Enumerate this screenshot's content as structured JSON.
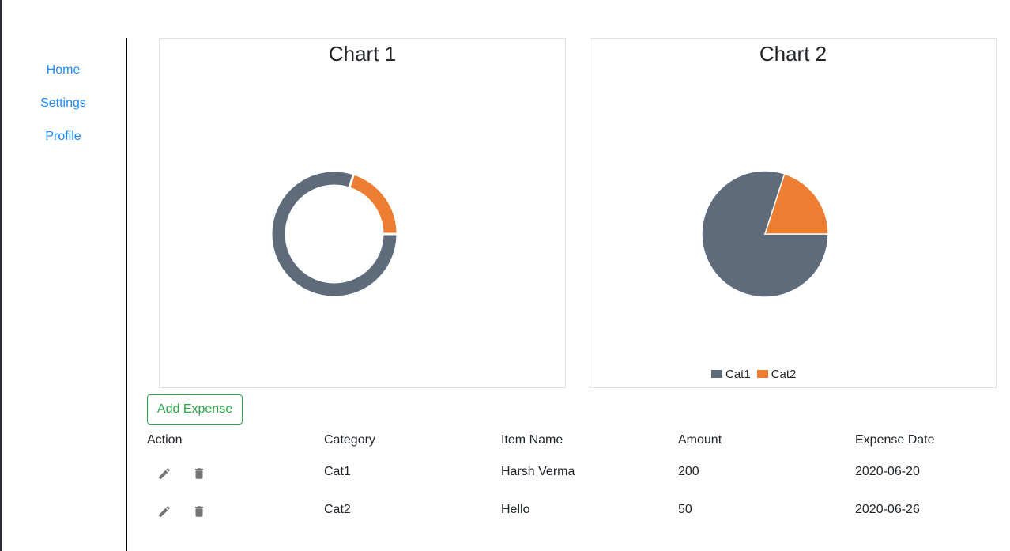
{
  "nav": {
    "items": [
      {
        "label": "Home"
      },
      {
        "label": "Settings"
      },
      {
        "label": "Profile"
      }
    ]
  },
  "charts": [
    {
      "title": "Chart 1",
      "type": "doughnut"
    },
    {
      "title": "Chart 2",
      "type": "pie"
    }
  ],
  "chart_data": [
    {
      "type": "pie",
      "variant": "doughnut",
      "title": "Chart 1",
      "categories": [
        "Cat1",
        "Cat2"
      ],
      "values": [
        200,
        50
      ],
      "colors": [
        "#5d6b7b",
        "#ed7d31"
      ],
      "legend": "none"
    },
    {
      "type": "pie",
      "title": "Chart 2",
      "categories": [
        "Cat1",
        "Cat2"
      ],
      "values": [
        200,
        50
      ],
      "colors": [
        "#5d6b7b",
        "#ed7d31"
      ],
      "legend": "bottom"
    }
  ],
  "legend": [
    {
      "label": "Cat1",
      "color": "#5d6b7b"
    },
    {
      "label": "Cat2",
      "color": "#ed7d31"
    }
  ],
  "add_button": "Add Expense",
  "table": {
    "headers": [
      "Action",
      "Category",
      "Item Name",
      "Amount",
      "Expense Date"
    ],
    "rows": [
      [
        "Cat1",
        "Harsh Verma",
        "200",
        "2020-06-20"
      ],
      [
        "Cat2",
        "Hello",
        "50",
        "2020-06-26"
      ]
    ]
  },
  "icons": {
    "edit": "pencil-icon",
    "delete": "trash-icon"
  }
}
